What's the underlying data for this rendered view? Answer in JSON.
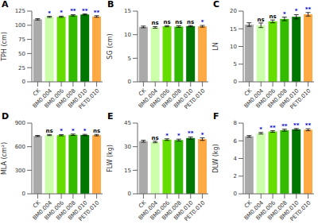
{
  "chart_data": [
    {
      "type": "bar",
      "title": "A",
      "ylabel": "TPH (cm)",
      "categories": [
        "CK",
        "BM0.004",
        "BM0.006",
        "BM0.008",
        "BM0.010",
        "PET0.010"
      ],
      "colors": [
        "#aaaaaa",
        "#ccffaa",
        "#66dd00",
        "#33bb00",
        "#007700",
        "#ffaa44"
      ],
      "ylim": [
        0,
        125
      ],
      "yticks": [
        0,
        25,
        50,
        75,
        100,
        125
      ],
      "values": [
        110.5,
        114.8,
        115.0,
        117.5,
        119.0,
        115.5
      ],
      "errors": [
        1.2,
        1.0,
        1.1,
        1.2,
        1.0,
        1.4
      ],
      "annotations": [
        {
          "category": "BM0.004",
          "text": "*",
          "color": "#0000cc"
        },
        {
          "category": "BM0.006",
          "text": "*",
          "color": "#0000cc"
        },
        {
          "category": "BM0.008",
          "text": "**",
          "color": "#0000cc"
        },
        {
          "category": "BM0.010",
          "text": "**",
          "color": "#0000cc"
        },
        {
          "category": "PET0.010",
          "text": "**",
          "color": "#0000cc"
        }
      ]
    },
    {
      "type": "bar",
      "title": "B",
      "ylabel": "SG (cm)",
      "categories": [
        "CK",
        "BM0.004",
        "BM0.006",
        "BM0.008",
        "BM0.010",
        "PET0.010"
      ],
      "colors": [
        "#aaaaaa",
        "#ccffaa",
        "#66dd00",
        "#33bb00",
        "#007700",
        "#ffaa44"
      ],
      "ylim": [
        0,
        15
      ],
      "yticks": [
        0,
        5,
        10,
        15
      ],
      "values": [
        11.65,
        11.55,
        11.8,
        11.72,
        11.82,
        11.78
      ],
      "errors": [
        0.18,
        0.17,
        0.13,
        0.18,
        0.13,
        0.18
      ],
      "annotations": [
        {
          "category": "BM0.004",
          "text": "ns",
          "color": "#000000"
        },
        {
          "category": "BM0.006",
          "text": "ns",
          "color": "#000000"
        },
        {
          "category": "BM0.008",
          "text": "ns",
          "color": "#000000"
        },
        {
          "category": "BM0.010",
          "text": "ns",
          "color": "#000000"
        },
        {
          "category": "PET0.010",
          "text": "*",
          "color": "#0000cc"
        }
      ]
    },
    {
      "type": "bar",
      "title": "C",
      "ylabel": "LN",
      "categories": [
        "CK",
        "BM0.004",
        "BM0.006",
        "BM0.008",
        "BM0.010",
        "PET0.010"
      ],
      "colors": [
        "#aaaaaa",
        "#ccffaa",
        "#66dd00",
        "#33bb00",
        "#007700",
        "#ffaa44"
      ],
      "ylim": [
        0,
        20
      ],
      "yticks": [
        0,
        5,
        10,
        15,
        20
      ],
      "values": [
        16.2,
        16.0,
        17.1,
        17.8,
        18.4,
        19.1
      ],
      "errors": [
        0.5,
        0.65,
        0.4,
        0.5,
        0.6,
        0.5
      ],
      "annotations": [
        {
          "category": "BM0.004",
          "text": "ns",
          "color": "#000000"
        },
        {
          "category": "BM0.006",
          "text": "ns",
          "color": "#000000"
        },
        {
          "category": "BM0.008",
          "text": "*",
          "color": "#0000cc"
        },
        {
          "category": "BM0.010",
          "text": "*",
          "color": "#0000cc"
        },
        {
          "category": "PET0.010",
          "text": "**",
          "color": "#0000cc"
        }
      ]
    },
    {
      "type": "bar",
      "title": "D",
      "ylabel": "MLA (cm²)",
      "categories": [
        "CK",
        "BM0.004",
        "BM0.006",
        "BM0.008",
        "BM0.010",
        "PET0.010"
      ],
      "colors": [
        "#aaaaaa",
        "#ccffaa",
        "#66dd00",
        "#33bb00",
        "#007700",
        "#ffaa44"
      ],
      "ylim": [
        0,
        900
      ],
      "yticks": [
        0,
        300,
        600,
        900
      ],
      "values": [
        736,
        748,
        746,
        752,
        749,
        747
      ],
      "errors": [
        7,
        7,
        8,
        9,
        8,
        9
      ],
      "annotations": [
        {
          "category": "BM0.004",
          "text": "ns",
          "color": "#000000"
        },
        {
          "category": "BM0.006",
          "text": "*",
          "color": "#0000cc"
        },
        {
          "category": "BM0.008",
          "text": "*",
          "color": "#0000cc"
        },
        {
          "category": "BM0.010",
          "text": "*",
          "color": "#0000cc"
        },
        {
          "category": "PET0.010",
          "text": "ns",
          "color": "#000000"
        }
      ]
    },
    {
      "type": "bar",
      "title": "E",
      "ylabel": "FLW (kg)",
      "categories": [
        "CK",
        "BM0.004",
        "BM0.006",
        "BM0.008",
        "BM0.010",
        "PET0.010"
      ],
      "colors": [
        "#aaaaaa",
        "#ccffaa",
        "#66dd00",
        "#33bb00",
        "#007700",
        "#ffaa44"
      ],
      "ylim": [
        0,
        45
      ],
      "yticks": [
        0,
        15,
        30,
        45
      ],
      "values": [
        33.5,
        33.0,
        34.5,
        34.2,
        35.5,
        34.8
      ],
      "errors": [
        0.6,
        0.5,
        0.5,
        0.6,
        0.7,
        0.8
      ],
      "annotations": [
        {
          "category": "BM0.004",
          "text": "ns",
          "color": "#000000"
        },
        {
          "category": "BM0.006",
          "text": "*",
          "color": "#0000cc"
        },
        {
          "category": "BM0.008",
          "text": "*",
          "color": "#0000cc"
        },
        {
          "category": "BM0.010",
          "text": "**",
          "color": "#0000cc"
        },
        {
          "category": "PET0.010",
          "text": "*",
          "color": "#0000cc"
        }
      ]
    },
    {
      "type": "bar",
      "title": "F",
      "ylabel": "DLW (kg)",
      "categories": [
        "CK",
        "BM0.004",
        "BM0.006",
        "BM0.008",
        "BM0.010",
        "PET0.010"
      ],
      "colors": [
        "#aaaaaa",
        "#ccffaa",
        "#66dd00",
        "#33bb00",
        "#007700",
        "#ffaa44"
      ],
      "ylim": [
        0,
        8
      ],
      "yticks": [
        0,
        2,
        4,
        6,
        8
      ],
      "values": [
        6.5,
        6.85,
        7.05,
        7.2,
        7.3,
        7.25
      ],
      "errors": [
        0.09,
        0.09,
        0.09,
        0.11,
        0.09,
        0.11
      ],
      "annotations": [
        {
          "category": "BM0.004",
          "text": "*",
          "color": "#0000cc"
        },
        {
          "category": "BM0.006",
          "text": "**",
          "color": "#0000cc"
        },
        {
          "category": "BM0.008",
          "text": "**",
          "color": "#0000cc"
        },
        {
          "category": "BM0.010",
          "text": "**",
          "color": "#0000cc"
        },
        {
          "category": "PET0.010",
          "text": "**",
          "color": "#0000cc"
        }
      ]
    }
  ]
}
